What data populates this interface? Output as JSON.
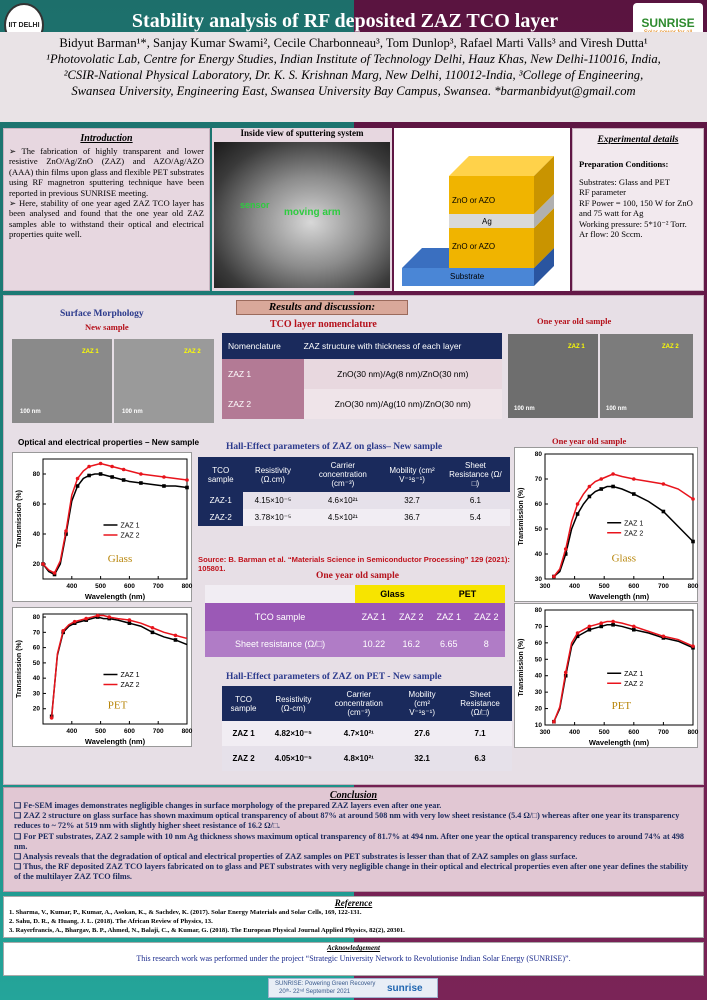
{
  "header": {
    "title": "Stability analysis of RF deposited ZAZ TCO layer",
    "logo_left": "IIT DELHI",
    "logo_right_name": "SUNRISE",
    "logo_right_tag": "Solar power for all"
  },
  "authors": {
    "line1": "Bidyut Barman¹*, Sanjay Kumar Swami², Cecile Charbonneau³, Tom Dunlop³, Rafael Marti Valls³ and Viresh Dutta¹",
    "line2": "¹Photovolatic Lab, Centre for Energy Studies, Indian Institute of Technology Delhi, Hauz Khas, New Delhi-110016, India,",
    "line3": "²CSIR-National Physical Laboratory, Dr. K. S. Krishnan Marg, New Delhi, 110012-India, ³College of Engineering,",
    "line4": "Swansea University, Engineering East, Swansea University Bay Campus, Swansea. *barmanbidyut@gmail.com"
  },
  "intro": {
    "heading": "Introduction",
    "p1": "➢ The fabrication of highly transparent and lower resistive ZnO/Ag/ZnO (ZAZ) and AZO/Ag/AZO (AAA) thin films upon glass and flexible PET substrates using RF magnetron sputtering technique have been reported in previous SUNRISE meeting.",
    "p2": "➢ Here, stability of one year aged ZAZ TCO layer has been analysed and found that the one year old ZAZ samples able to withstand their optical and electrical properties quite well."
  },
  "sputter": {
    "heading": "Inside view of sputtering system",
    "label1": "sensor",
    "label2": "moving arm"
  },
  "stack": {
    "layers": [
      "ZnO or AZO",
      "Ag",
      "ZnO or AZO",
      "Substrate"
    ]
  },
  "exp": {
    "heading": "Experimental details",
    "sub": "Preparation Conditions:",
    "lines": [
      "Substrates: Glass and PET",
      "RF parameter",
      "RF Power = 100, 150 W for ZnO and 75 watt for Ag",
      "Working pressure: 5*10⁻² Torr.",
      "Ar flow: 20 Sccm."
    ]
  },
  "results_heading": "Results and discussion:",
  "surface": {
    "heading": "Surface Morphology",
    "new": "New sample",
    "old": "One year old sample",
    "zaz1": "ZAZ 1",
    "zaz2": "ZAZ 2",
    "scale": "100 nm"
  },
  "nomen": {
    "heading": "TCO layer nomenclature",
    "cols": [
      "Nomenclature",
      "ZAZ structure with thickness  of each layer"
    ],
    "rows": [
      [
        "ZAZ 1",
        "ZnO(30 nm)/Ag(8 nm)/ZnO(30 nm)"
      ],
      [
        "ZAZ 2",
        "ZnO(30 nm)/Ag(10 nm)/ZnO(30 nm)"
      ]
    ]
  },
  "optical_heading": "Optical and electrical properties – New sample",
  "old_optical_heading": "One year old sample",
  "hall_glass": {
    "heading": "Hall-Effect parameters of ZAZ on glass– New sample",
    "cols": [
      "TCO sample",
      "Resistivity (Ω.cm)",
      "Carrier concentration (cm⁻³)",
      "Mobility (cm² V⁻¹s⁻¹)",
      "Sheet Resistance (Ω/□)"
    ],
    "rows": [
      [
        "ZAZ-1",
        "4.15×10⁻⁵",
        "4.6×10²¹",
        "32.7",
        "6.1"
      ],
      [
        "ZAZ-2",
        "3.78×10⁻⁵",
        "4.5×10²¹",
        "36.7",
        "5.4"
      ]
    ]
  },
  "source": "Source: B. Barman et al. “Materials Science in Semiconductor Processing” 129 (2021): 105801.",
  "old_table": {
    "heading": "One year old sample",
    "groups": [
      "Glass",
      "PET"
    ],
    "rowA": [
      "TCO sample",
      "ZAZ 1",
      "ZAZ 2",
      "ZAZ 1",
      "ZAZ 2"
    ],
    "rowB": [
      "Sheet resistance (Ω/□)",
      "10.22",
      "16.2",
      "6.65",
      "8"
    ]
  },
  "hall_pet": {
    "heading": "Hall-Effect parameters of ZAZ on PET - New sample",
    "cols": [
      "TCO sample",
      "Resistivity (Ω-cm)",
      "Carrier concentration (cm⁻³)",
      "Mobility (cm² V⁻¹s⁻¹)",
      "Sheet Resistance (Ω/□)"
    ],
    "rows": [
      [
        "ZAZ 1",
        "4.82×10⁻⁵",
        "4.7×10²¹",
        "27.6",
        "7.1"
      ],
      [
        "ZAZ 2",
        "4.05×10⁻⁵",
        "4.8×10²¹",
        "32.1",
        "6.3"
      ]
    ]
  },
  "conclusion": {
    "heading": "Conclusion",
    "items": [
      "❑ Fe-SEM images demonstrates negligible changes in surface morphology of the prepared ZAZ layers even after one year.",
      "❑ ZAZ 2 structure on glass surface has shown maximum optical transparency of about 87% at around 508 nm with very low sheet resistance (5.4 Ω/□) whereas after one year its transparency reduces to ~ 72% at 519 nm with  slightly higher sheet resistance of 16.2 Ω/□.",
      "❑ For PET substrates, ZAZ 2 sample with 10 nm Ag thickness shows maximum optical transparency of 81.7% at 494 nm. After one year the optical transparency reduces to around 74% at 498 nm.",
      "❑ Analysis reveals that the degradation of  optical and electrical properties of ZAZ samples on PET substrates is lesser than that of  ZAZ samples on glass surface.",
      "❑  Thus, the  RF deposited ZAZ TCO layers fabricated on to glass and PET substrates with very negligible change in their  optical and electrical properties even after one year defines the stability of the multilayer ZAZ TCO films."
    ]
  },
  "reference": {
    "heading": "Reference",
    "items": [
      "1.  Sharma, V., Kumar, P., Kumar, A., Asokan, K., & Sachdev, K. (2017). Solar Energy Materials and Solar Cells, 169, 122-131.",
      "2.  Sahu, D. R., & Huang, J. L. (2018). The African Review of Physics, 13.",
      "3.  Rayerfrancis, A., Bhargav, B. P., Ahmed, N., Balaji, C., & Kumar, G. (2018). The European Physical Journal Applied Physics, 82(2), 20301."
    ]
  },
  "ack": {
    "heading": "Acknowledgement",
    "text": "This research work was performed under the project “Strategic University Network to Revolutionise Indian Solar Energy (SUNRISE)”."
  },
  "footer": {
    "l1": "SUNRISE: Powering Green Recovery",
    "l2": "20ᵗʰ- 22ⁿᵈ September 2021",
    "brand": "sunrise"
  },
  "colors": {
    "zaz1": "#000000",
    "zaz2": "#e8141c",
    "navy": "#1a2a5c",
    "purple": "#9b59b6",
    "yellow": "#f7e400"
  },
  "chart_data": [
    {
      "type": "line",
      "name": "glass-new",
      "xlabel": "Wavelength (nm)",
      "ylabel": "Transmission (%)",
      "annotation": "Glass",
      "xlim": [
        300,
        800
      ],
      "ylim": [
        10,
        90
      ],
      "xticks": [
        400,
        500,
        600,
        700,
        800
      ],
      "yticks": [
        20,
        40,
        60,
        80
      ],
      "series": [
        {
          "name": "ZAZ 1",
          "x": [
            300,
            320,
            340,
            360,
            380,
            400,
            420,
            440,
            460,
            480,
            500,
            520,
            540,
            560,
            580,
            600,
            640,
            680,
            720,
            760,
            800
          ],
          "y": [
            20,
            15,
            13,
            20,
            40,
            62,
            72,
            77,
            79,
            80,
            80,
            79,
            78,
            77,
            76,
            75,
            74,
            73,
            72,
            72,
            71
          ]
        },
        {
          "name": "ZAZ 2",
          "x": [
            300,
            320,
            340,
            360,
            380,
            400,
            420,
            440,
            460,
            480,
            500,
            520,
            540,
            560,
            580,
            600,
            640,
            680,
            720,
            760,
            800
          ],
          "y": [
            20,
            16,
            14,
            22,
            42,
            66,
            77,
            82,
            85,
            86,
            87,
            86,
            85,
            84,
            83,
            82,
            80,
            79,
            78,
            77,
            76
          ]
        }
      ]
    },
    {
      "type": "line",
      "name": "pet-new",
      "xlabel": "Wavelength (nm)",
      "ylabel": "Transmission (%)",
      "annotation": "PET",
      "xlim": [
        300,
        800
      ],
      "ylim": [
        10,
        82
      ],
      "xticks": [
        400,
        500,
        600,
        700,
        800
      ],
      "yticks": [
        20,
        30,
        40,
        50,
        60,
        70,
        80
      ],
      "series": [
        {
          "name": "ZAZ 1",
          "x": [
            330,
            350,
            370,
            390,
            410,
            430,
            450,
            470,
            490,
            510,
            530,
            560,
            600,
            640,
            680,
            720,
            760,
            800
          ],
          "y": [
            15,
            55,
            70,
            74,
            76,
            77,
            78,
            79,
            80,
            79,
            79,
            78,
            76,
            74,
            70,
            67,
            65,
            62
          ]
        },
        {
          "name": "ZAZ 2",
          "x": [
            330,
            350,
            370,
            390,
            410,
            430,
            450,
            470,
            490,
            510,
            530,
            560,
            600,
            640,
            680,
            720,
            760,
            800
          ],
          "y": [
            14,
            56,
            71,
            75,
            77,
            78,
            79,
            80,
            81,
            81,
            80,
            79,
            78,
            76,
            73,
            70,
            68,
            66
          ]
        }
      ]
    },
    {
      "type": "line",
      "name": "glass-old",
      "xlabel": "Wavelength (nm)",
      "ylabel": "Transmission (%)",
      "annotation": "Glass",
      "xlim": [
        300,
        800
      ],
      "ylim": [
        30,
        80
      ],
      "xticks": [
        300,
        400,
        500,
        600,
        700,
        800
      ],
      "yticks": [
        30,
        40,
        50,
        60,
        70,
        80
      ],
      "series": [
        {
          "name": "ZAZ 1",
          "x": [
            330,
            350,
            370,
            390,
            410,
            430,
            450,
            470,
            490,
            510,
            530,
            560,
            600,
            650,
            700,
            750,
            800
          ],
          "y": [
            31,
            33,
            40,
            50,
            56,
            60,
            63,
            65,
            66,
            67,
            67,
            66,
            64,
            61,
            57,
            51,
            45
          ]
        },
        {
          "name": "ZAZ 2",
          "x": [
            330,
            350,
            370,
            390,
            410,
            430,
            450,
            470,
            490,
            510,
            530,
            560,
            600,
            650,
            700,
            750,
            800
          ],
          "y": [
            31,
            34,
            42,
            53,
            60,
            64,
            67,
            69,
            70,
            71,
            72,
            71,
            70,
            69,
            68,
            66,
            62
          ]
        }
      ]
    },
    {
      "type": "line",
      "name": "pet-old",
      "xlabel": "Wavelength (nm)",
      "ylabel": "Transmission (%)",
      "annotation": "PET",
      "xlim": [
        300,
        800
      ],
      "ylim": [
        10,
        80
      ],
      "xticks": [
        300,
        400,
        500,
        600,
        700,
        800
      ],
      "yticks": [
        10,
        20,
        30,
        40,
        50,
        60,
        70,
        80
      ],
      "series": [
        {
          "name": "ZAZ 1",
          "x": [
            330,
            350,
            370,
            390,
            410,
            430,
            450,
            470,
            490,
            510,
            530,
            560,
            600,
            650,
            700,
            750,
            800
          ],
          "y": [
            12,
            20,
            40,
            58,
            64,
            66,
            68,
            69,
            70,
            71,
            71,
            70,
            68,
            66,
            63,
            61,
            57
          ]
        },
        {
          "name": "ZAZ 2",
          "x": [
            330,
            350,
            370,
            390,
            410,
            430,
            450,
            470,
            490,
            510,
            530,
            560,
            600,
            650,
            700,
            750,
            800
          ],
          "y": [
            12,
            21,
            42,
            60,
            66,
            68,
            70,
            71,
            72,
            73,
            73,
            72,
            70,
            67,
            64,
            62,
            58
          ]
        }
      ]
    }
  ]
}
